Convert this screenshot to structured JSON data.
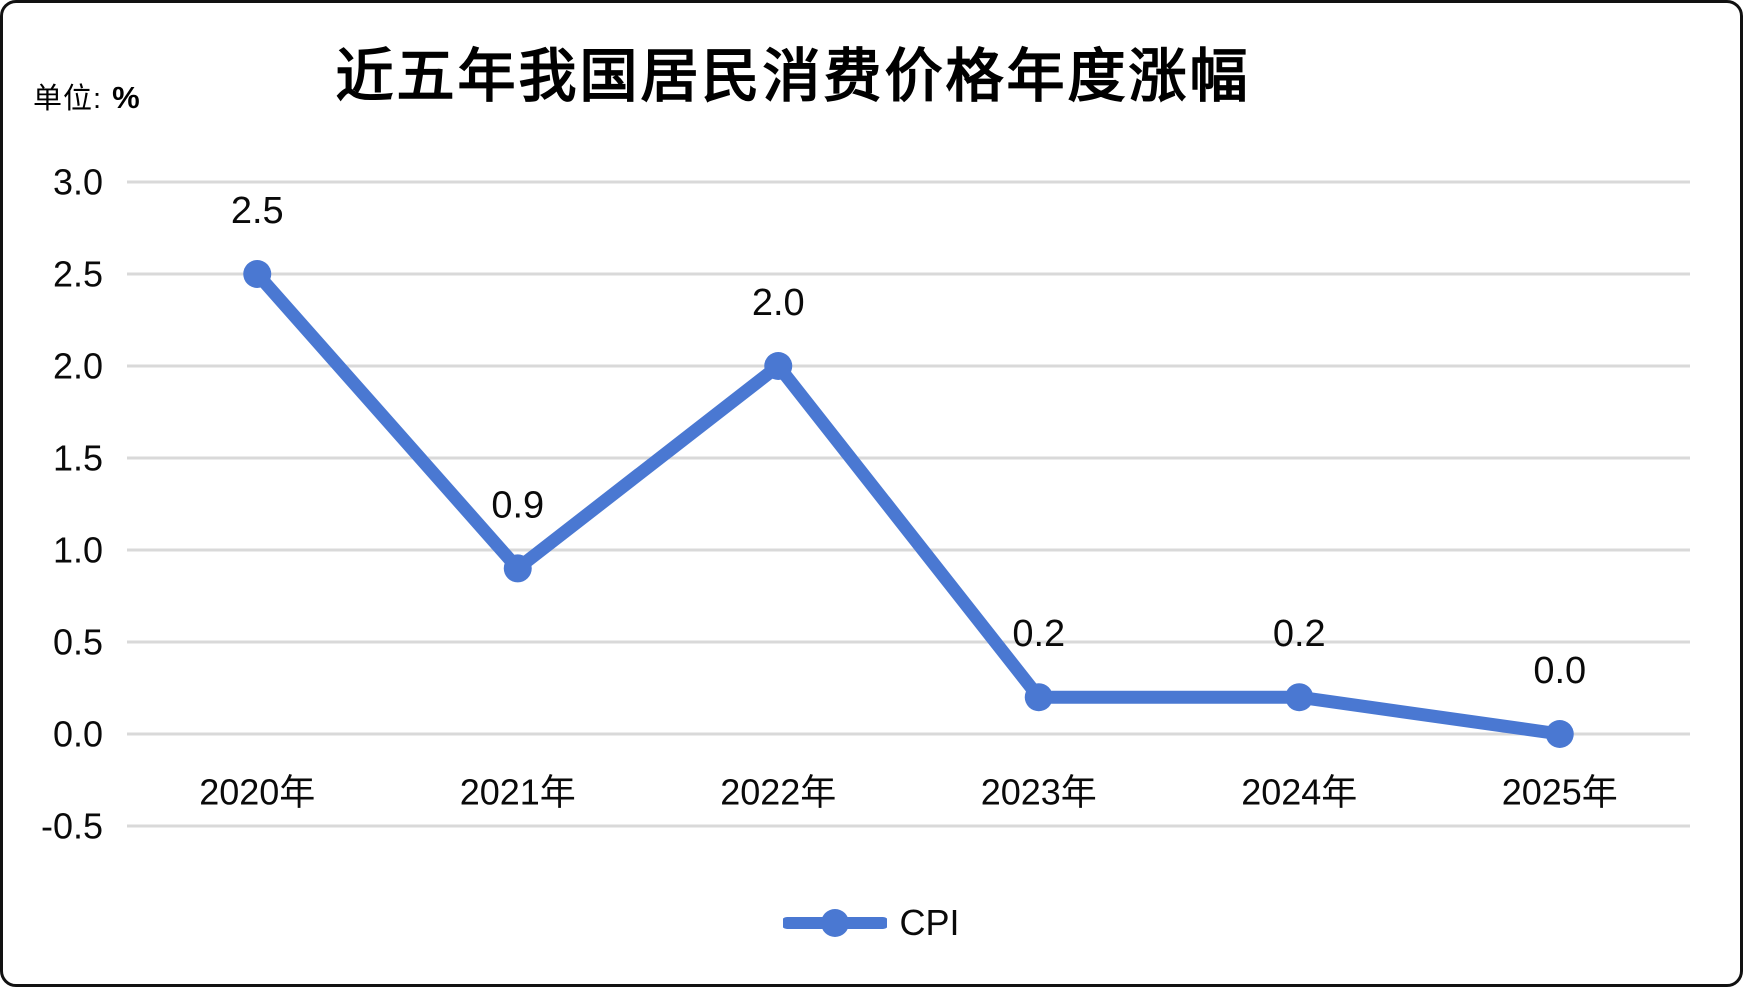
{
  "header": {
    "title": "近五年我国居民消费价格年度涨幅",
    "unit_prefix": "单位:",
    "unit_value": "%"
  },
  "legend": {
    "series_label": "CPI"
  },
  "colors": {
    "series": "#4A78D2",
    "gridline": "#D9D9D9",
    "text": "#0A0A0A",
    "background": "#FFFFFF",
    "border": "#111111"
  },
  "chart_data": {
    "type": "line",
    "title": "近五年我国居民消费价格年度涨幅",
    "unit": "%",
    "categories": [
      "2020年",
      "2021年",
      "2022年",
      "2023年",
      "2024年",
      "2025年"
    ],
    "series": [
      {
        "name": "CPI",
        "values": [
          2.5,
          0.9,
          2.0,
          0.2,
          0.2,
          0.0
        ]
      }
    ],
    "data_labels": [
      "2.5",
      "0.9",
      "2.0",
      "0.2",
      "0.2",
      "0.0"
    ],
    "y_ticks": [
      "3.0",
      "2.5",
      "2.0",
      "1.5",
      "1.0",
      "0.5",
      "0.0",
      "-0.5"
    ],
    "y_tick_values": [
      3.0,
      2.5,
      2.0,
      1.5,
      1.0,
      0.5,
      0.0,
      -0.5
    ],
    "ylim": [
      -0.5,
      3.0
    ],
    "xlabel": "",
    "ylabel": "%",
    "grid": "horizontal",
    "legend_position": "bottom",
    "marker": "circle"
  }
}
